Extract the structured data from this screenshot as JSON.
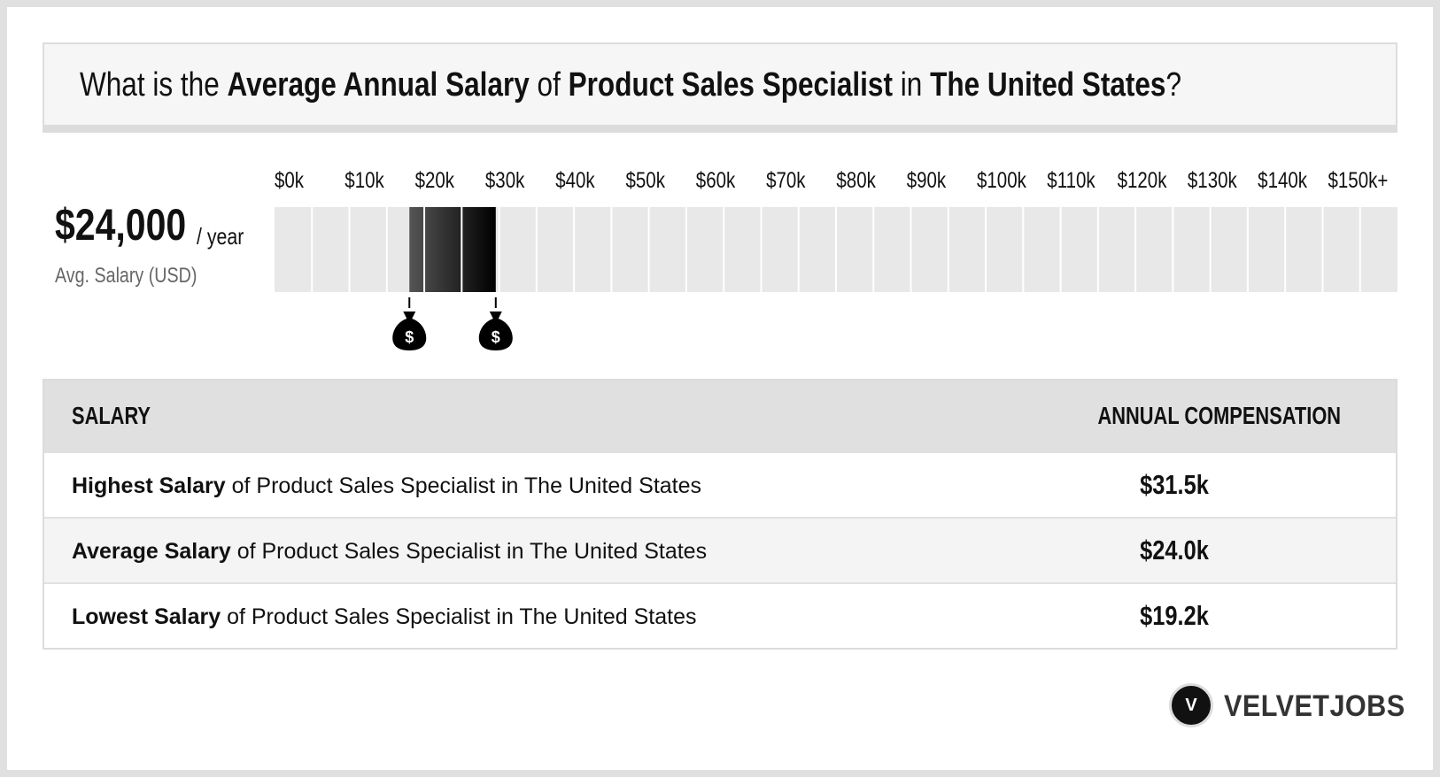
{
  "headline": {
    "prefix": "What is the ",
    "metric": "Average Annual Salary",
    "of": " of ",
    "job": "Product Sales Specialist",
    "in": " in ",
    "location": "The United States",
    "suffix": "?"
  },
  "average": {
    "value": "$24,000",
    "unit": "/ year",
    "label": "Avg. Salary (USD)"
  },
  "chart_data": {
    "type": "bar",
    "title": "",
    "x": {
      "tick_labels": [
        "$0k",
        "$10k",
        "$20k",
        "$30k",
        "$40k",
        "$50k",
        "$60k",
        "$70k",
        "$80k",
        "$90k",
        "$100k",
        "$110k",
        "$120k",
        "$130k",
        "$140k",
        "$150k+"
      ],
      "range": [
        0,
        150000
      ]
    },
    "salary_range": {
      "lowest": 19200,
      "average": 24000,
      "highest": 31500
    },
    "markers": [
      {
        "name": "lowest-salary-marker",
        "value": 19200,
        "label": "$"
      },
      {
        "name": "highest-salary-marker",
        "value": 31500,
        "label": "$"
      }
    ],
    "colors": {
      "track": "#e8e8e8",
      "range_start": "#555555",
      "range_end": "#000000"
    }
  },
  "table": {
    "headers": {
      "left": "SALARY",
      "right": "ANNUAL COMPENSATION"
    },
    "rows": [
      {
        "strong": "Highest Salary",
        "rest": " of Product Sales Specialist in The United States",
        "value": "$31.5k"
      },
      {
        "strong": "Average Salary",
        "rest": " of Product Sales Specialist in The United States",
        "value": "$24.0k"
      },
      {
        "strong": "Lowest Salary",
        "rest": " of Product Sales Specialist in The United States",
        "value": "$19.2k"
      }
    ]
  },
  "logo": {
    "mark": "V",
    "text": "VELVETJOBS"
  }
}
